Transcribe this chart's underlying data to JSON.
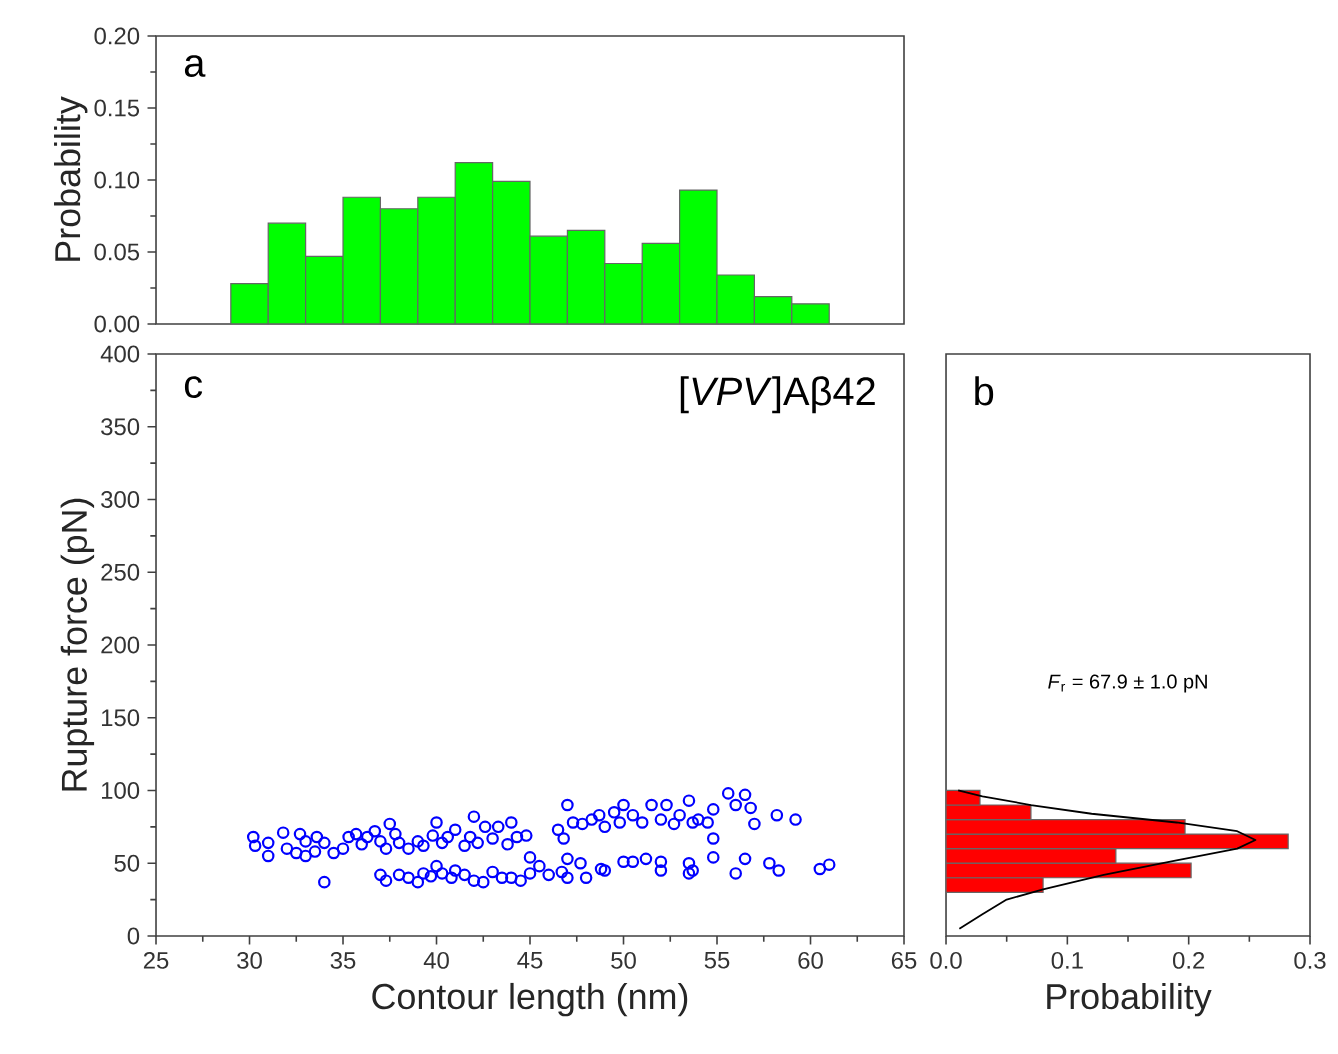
{
  "chart_data": [
    {
      "type": "histogram",
      "ylabel": "Probability",
      "color": "#00ff00",
      "bins": [
        29,
        31,
        33,
        35,
        37,
        39,
        41,
        43,
        45,
        47,
        49,
        51,
        53,
        55,
        57,
        59,
        61
      ],
      "values": [
        0.028,
        0.07,
        0.047,
        0.088,
        0.08,
        0.088,
        0.112,
        0.099,
        0.061,
        0.065,
        0.042,
        0.056,
        0.093,
        0.034,
        0.019,
        0.014
      ],
      "xlim": [
        25,
        65
      ],
      "ylim": [
        0,
        0.2
      ],
      "yticks": [
        {
          "value": 0,
          "label": "0.00"
        },
        {
          "value": 0.05,
          "label": "0.05"
        },
        {
          "value": 0.1,
          "label": "0.10"
        },
        {
          "value": 0.15,
          "label": "0.15"
        },
        {
          "value": 0.2,
          "label": "0.20"
        }
      ],
      "tick_labels": "y",
      "annotations": [
        "a"
      ]
    },
    {
      "type": "scatter",
      "xlabel": "Contour length (nm)",
      "ylabel": "Rupture force (pN)",
      "color": "#0000ff",
      "marker": "circle",
      "x": [
        30.2,
        30.3,
        31,
        31,
        31.8,
        32,
        32.5,
        32.7,
        33,
        33,
        33.5,
        33.6,
        34,
        34,
        34.5,
        35,
        35.3,
        35.7,
        36,
        36.3,
        36.7,
        37,
        37.3,
        37.5,
        37.8,
        38,
        38.5,
        39,
        39.3,
        39.8,
        40,
        40.3,
        40.6,
        41,
        41.5,
        41.8,
        42,
        42.2,
        42.6,
        43,
        43.3,
        43.8,
        44,
        44.3,
        44.8,
        46.5,
        46.8,
        47,
        47.3,
        47.8,
        48.3,
        48.7,
        49,
        49.5,
        49.8,
        50,
        50.5,
        51,
        51.5,
        52,
        52.3,
        52.7,
        53,
        53.5,
        53.7,
        54,
        54.5,
        54.8,
        54.8,
        55.6,
        56,
        56.5,
        56.8,
        57,
        58.2,
        59.2,
        37,
        37.3,
        38,
        38.5,
        39,
        39.3,
        39.7,
        40,
        40.3,
        40.8,
        41,
        41.5,
        42,
        42.5,
        43,
        43.5,
        44,
        44.5,
        45,
        45,
        45.5,
        46,
        46.7,
        47,
        47,
        47.7,
        48,
        48.8,
        49,
        50,
        50.5,
        51.2,
        52,
        52,
        53.5,
        53.5,
        53.7,
        54.8,
        56,
        56.5,
        57.8,
        58.3,
        60.5,
        61
      ],
      "values": [
        68,
        62,
        64,
        55,
        71,
        60,
        57,
        70,
        65,
        55,
        58,
        68,
        64,
        37,
        57,
        60,
        68,
        70,
        63,
        68,
        72,
        65,
        60,
        77,
        70,
        64,
        60,
        65,
        62,
        69,
        78,
        64,
        68,
        73,
        62,
        68,
        82,
        64,
        75,
        67,
        75,
        63,
        78,
        68,
        69,
        73,
        67,
        90,
        78,
        77,
        80,
        83,
        75,
        85,
        78,
        90,
        83,
        78,
        90,
        80,
        90,
        77,
        83,
        93,
        78,
        80,
        78,
        87,
        67,
        98,
        90,
        97,
        88,
        77,
        83,
        80,
        42,
        38,
        42,
        40,
        37,
        43,
        41,
        48,
        43,
        40,
        45,
        42,
        38,
        37,
        44,
        40,
        40,
        38,
        54,
        43,
        48,
        42,
        44,
        53,
        40,
        50,
        40,
        46,
        45,
        51,
        51,
        53,
        51,
        45,
        50,
        43,
        45,
        54,
        43,
        53,
        50,
        45,
        46,
        49
      ],
      "xlim": [
        25,
        65
      ],
      "ylim": [
        0,
        400
      ],
      "xticks": [
        25,
        30,
        35,
        40,
        45,
        50,
        55,
        60,
        65
      ],
      "yticks": [
        0,
        50,
        100,
        150,
        200,
        250,
        300,
        350,
        400
      ],
      "annotations": [
        "c",
        "[*VPV*]Aβ42"
      ]
    },
    {
      "type": "histogram",
      "orientation": "horizontal",
      "xlabel": "Probability",
      "series": [
        {
          "type": "histogram",
          "color": "#ff0000",
          "bins": [
            30,
            40,
            50,
            60,
            70,
            80,
            90,
            100
          ],
          "values": [
            0.08,
            0.202,
            0.14,
            0.282,
            0.197,
            0.07,
            0.028
          ]
        },
        {
          "type": "line",
          "color": "#000000",
          "x": [
            5,
            15,
            25,
            32,
            42,
            52,
            60,
            66,
            72,
            78,
            84,
            90,
            96,
            100
          ],
          "values": [
            0.011,
            0.03,
            0.05,
            0.08,
            0.13,
            0.19,
            0.24,
            0.255,
            0.24,
            0.19,
            0.12,
            0.07,
            0.03,
            0.01
          ]
        }
      ],
      "xlim": [
        0,
        0.3
      ],
      "ylim": [
        0,
        400
      ],
      "xticks": [
        {
          "value": 0,
          "label": "0.0"
        },
        0.1,
        0.2,
        0.3
      ],
      "tick_labels": "x",
      "annotations": [
        "b",
        "*F*$_{r}$ = 67.9 ± 1.0 pN"
      ]
    }
  ]
}
